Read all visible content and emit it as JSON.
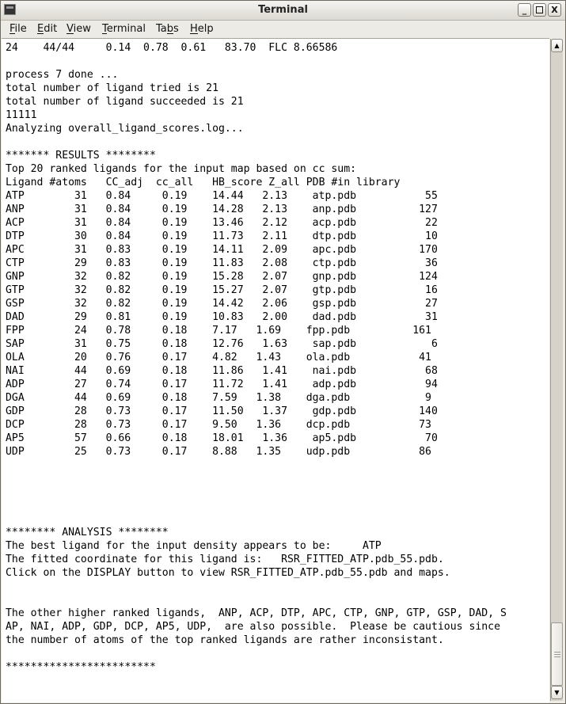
{
  "window": {
    "title": "Terminal",
    "icon": "terminal-icon",
    "buttons": [
      "minimize",
      "maximize",
      "close"
    ]
  },
  "menubar": [
    {
      "label": "File",
      "mnemonic_index": 0
    },
    {
      "label": "Edit",
      "mnemonic_index": 0
    },
    {
      "label": "View",
      "mnemonic_index": 0
    },
    {
      "label": "Terminal",
      "mnemonic_index": 0
    },
    {
      "label": "Tabs",
      "mnemonic_index": 2
    },
    {
      "label": "Help",
      "mnemonic_index": 0
    }
  ],
  "terminal": {
    "pre_lines": [
      "24    44/44     0.14  0.78  0.61   83.70  FLC 8.66586",
      "",
      "process 7 done ...",
      "total number of ligand tried is 21",
      "total number of ligand succeeded is 21",
      "11111",
      "Analyzing overall_ligand_scores.log...",
      "",
      "******* RESULTS ********",
      "Top 20 ranked ligands for the input map based on cc sum:"
    ],
    "table_header": "Ligand #atoms   CC_adj  cc_all   HB_score Z_all PDB #in library",
    "table_rows": [
      {
        "ligand": "ATP",
        "atoms": "31",
        "cc_adj": "0.84",
        "cc_all": "0.19",
        "hb_score": "14.44",
        "z_all": "2.13",
        "pdb": "atp.pdb",
        "in_library": "55"
      },
      {
        "ligand": "ANP",
        "atoms": "31",
        "cc_adj": "0.84",
        "cc_all": "0.19",
        "hb_score": "14.28",
        "z_all": "2.13",
        "pdb": "anp.pdb",
        "in_library": "127"
      },
      {
        "ligand": "ACP",
        "atoms": "31",
        "cc_adj": "0.84",
        "cc_all": "0.19",
        "hb_score": "13.46",
        "z_all": "2.12",
        "pdb": "acp.pdb",
        "in_library": "22"
      },
      {
        "ligand": "DTP",
        "atoms": "30",
        "cc_adj": "0.84",
        "cc_all": "0.19",
        "hb_score": "11.73",
        "z_all": "2.11",
        "pdb": "dtp.pdb",
        "in_library": "10"
      },
      {
        "ligand": "APC",
        "atoms": "31",
        "cc_adj": "0.83",
        "cc_all": "0.19",
        "hb_score": "14.11",
        "z_all": "2.09",
        "pdb": "apc.pdb",
        "in_library": "170"
      },
      {
        "ligand": "CTP",
        "atoms": "29",
        "cc_adj": "0.83",
        "cc_all": "0.19",
        "hb_score": "11.83",
        "z_all": "2.08",
        "pdb": "ctp.pdb",
        "in_library": "36"
      },
      {
        "ligand": "GNP",
        "atoms": "32",
        "cc_adj": "0.82",
        "cc_all": "0.19",
        "hb_score": "15.28",
        "z_all": "2.07",
        "pdb": "gnp.pdb",
        "in_library": "124"
      },
      {
        "ligand": "GTP",
        "atoms": "32",
        "cc_adj": "0.82",
        "cc_all": "0.19",
        "hb_score": "15.27",
        "z_all": "2.07",
        "pdb": "gtp.pdb",
        "in_library": "16"
      },
      {
        "ligand": "GSP",
        "atoms": "32",
        "cc_adj": "0.82",
        "cc_all": "0.19",
        "hb_score": "14.42",
        "z_all": "2.06",
        "pdb": "gsp.pdb",
        "in_library": "27"
      },
      {
        "ligand": "DAD",
        "atoms": "29",
        "cc_adj": "0.81",
        "cc_all": "0.19",
        "hb_score": "10.83",
        "z_all": "2.00",
        "pdb": "dad.pdb",
        "in_library": "31"
      },
      {
        "ligand": "FPP",
        "atoms": "24",
        "cc_adj": "0.78",
        "cc_all": "0.18",
        "hb_score": "7.17",
        "z_all": "1.69",
        "pdb": "fpp.pdb",
        "in_library": "161"
      },
      {
        "ligand": "SAP",
        "atoms": "31",
        "cc_adj": "0.75",
        "cc_all": "0.18",
        "hb_score": "12.76",
        "z_all": "1.63",
        "pdb": "sap.pdb",
        "in_library": "6"
      },
      {
        "ligand": "OLA",
        "atoms": "20",
        "cc_adj": "0.76",
        "cc_all": "0.17",
        "hb_score": "4.82",
        "z_all": "1.43",
        "pdb": "ola.pdb",
        "in_library": "41"
      },
      {
        "ligand": "NAI",
        "atoms": "44",
        "cc_adj": "0.69",
        "cc_all": "0.18",
        "hb_score": "11.86",
        "z_all": "1.41",
        "pdb": "nai.pdb",
        "in_library": "68"
      },
      {
        "ligand": "ADP",
        "atoms": "27",
        "cc_adj": "0.74",
        "cc_all": "0.17",
        "hb_score": "11.72",
        "z_all": "1.41",
        "pdb": "adp.pdb",
        "in_library": "94"
      },
      {
        "ligand": "DGA",
        "atoms": "44",
        "cc_adj": "0.69",
        "cc_all": "0.18",
        "hb_score": "7.59",
        "z_all": "1.38",
        "pdb": "dga.pdb",
        "in_library": "9"
      },
      {
        "ligand": "GDP",
        "atoms": "28",
        "cc_adj": "0.73",
        "cc_all": "0.17",
        "hb_score": "11.50",
        "z_all": "1.37",
        "pdb": "gdp.pdb",
        "in_library": "140"
      },
      {
        "ligand": "DCP",
        "atoms": "28",
        "cc_adj": "0.73",
        "cc_all": "0.17",
        "hb_score": "9.50",
        "z_all": "1.36",
        "pdb": "dcp.pdb",
        "in_library": "73"
      },
      {
        "ligand": "AP5",
        "atoms": "57",
        "cc_adj": "0.66",
        "cc_all": "0.18",
        "hb_score": "18.01",
        "z_all": "1.36",
        "pdb": "ap5.pdb",
        "in_library": "70"
      },
      {
        "ligand": "UDP",
        "atoms": "25",
        "cc_adj": "0.73",
        "cc_all": "0.17",
        "hb_score": "8.88",
        "z_all": "1.35",
        "pdb": "udp.pdb",
        "in_library": "86"
      }
    ],
    "post_lines": [
      "",
      "",
      "",
      "",
      "",
      "******** ANALYSIS ********",
      "The best ligand for the input density appears to be:     ATP",
      "The fitted coordinate for this ligand is:   RSR_FITTED_ATP.pdb_55.pdb.",
      "Click on the DISPLAY button to view RSR_FITTED_ATP.pdb_55.pdb and maps.",
      "",
      "",
      "The other higher ranked ligands,  ANP, ACP, DTP, APC, CTP, GNP, GTP, GSP, DAD, S",
      "AP, NAI, ADP, GDP, DCP, AP5, UDP,  are also possible.  Please be cautious since",
      "the number of atoms of the top ranked ligands are rather inconsistant.",
      "",
      "************************"
    ]
  },
  "scrollbar": {
    "position_percent": 95
  }
}
